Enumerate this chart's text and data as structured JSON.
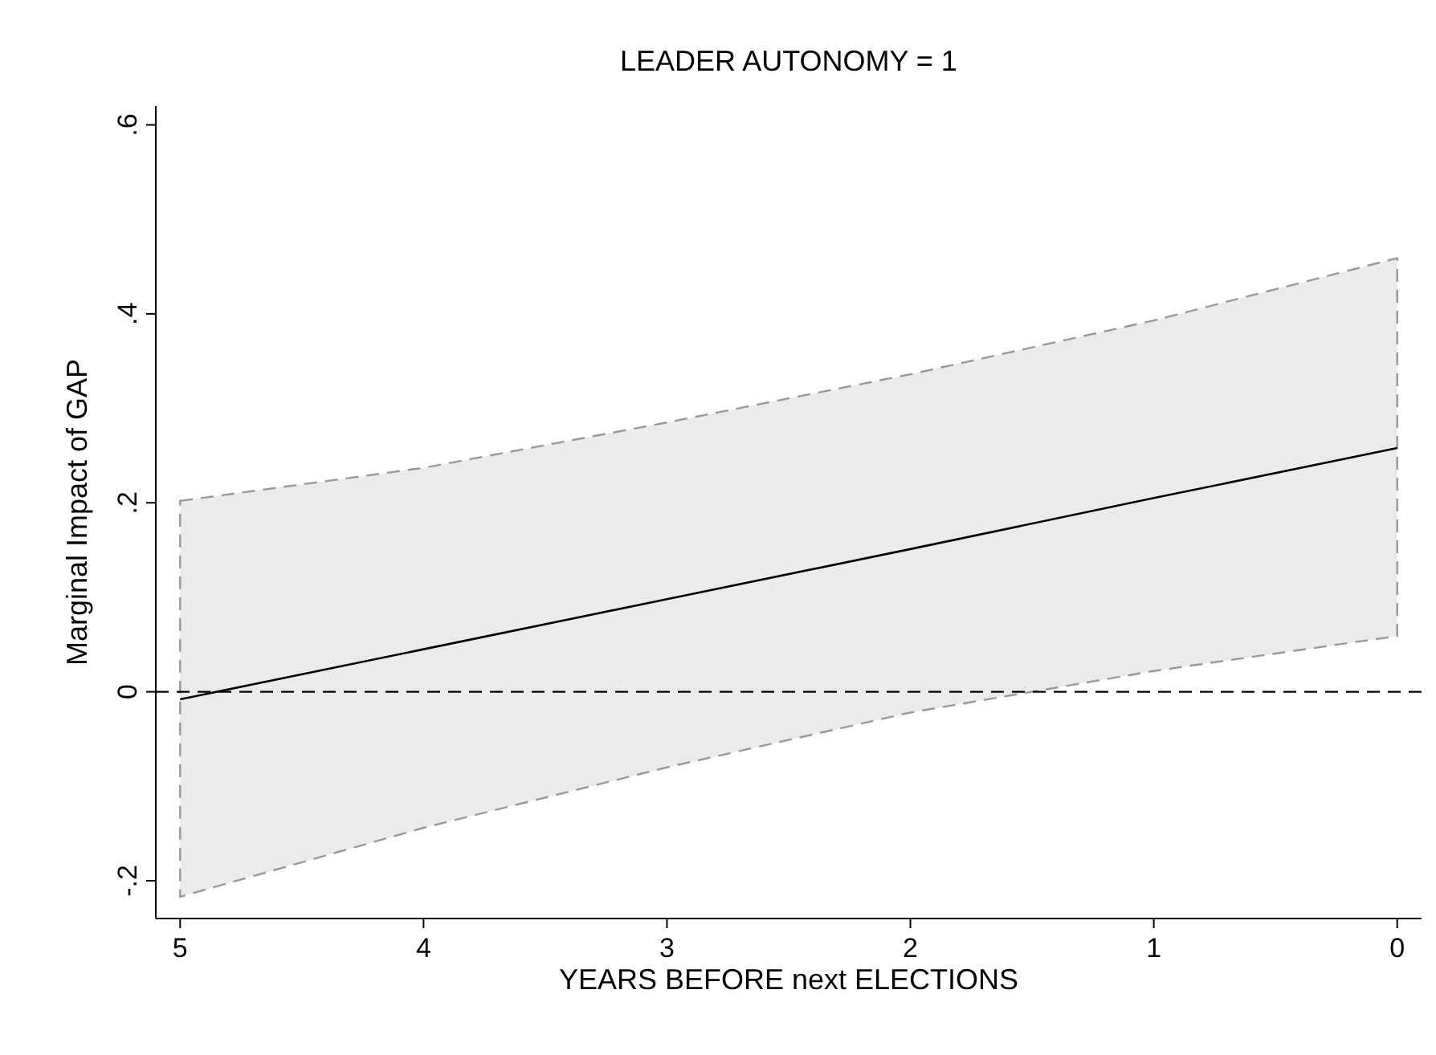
{
  "chart_data": {
    "type": "line",
    "title": "LEADER AUTONOMY = 1",
    "xlabel": "YEARS BEFORE next ELECTIONS",
    "ylabel": "Marginal Impact of GAP",
    "x": [
      5,
      4,
      3,
      2,
      1,
      0
    ],
    "series": [
      {
        "color": "#000000",
        "values": [
          -0.008,
          0.045,
          0.098,
          0.151,
          0.205,
          0.258
        ],
        "lower": [
          -0.217,
          -0.144,
          -0.08,
          -0.022,
          0.022,
          0.059
        ],
        "upper": [
          0.202,
          0.237,
          0.285,
          0.336,
          0.393,
          0.459
        ]
      }
    ],
    "xlim": [
      5.1,
      -0.1
    ],
    "xticks": [
      5,
      4,
      3,
      2,
      1,
      0
    ],
    "ylim": [
      -0.24,
      0.62
    ],
    "yticks": [
      {
        "value": -0.2,
        "label": "-.2"
      },
      {
        "value": 0,
        "label": "0"
      },
      {
        "value": 0.2,
        "label": ".2"
      },
      {
        "value": 0.4,
        "label": ".4"
      },
      {
        "value": 0.6,
        "label": ".6"
      }
    ],
    "ref_lines": [
      {
        "axis": "y",
        "value": 0,
        "color": "#000000",
        "line_style": "dashed"
      }
    ],
    "grid": false,
    "marker": "none",
    "line_style": "solid"
  }
}
